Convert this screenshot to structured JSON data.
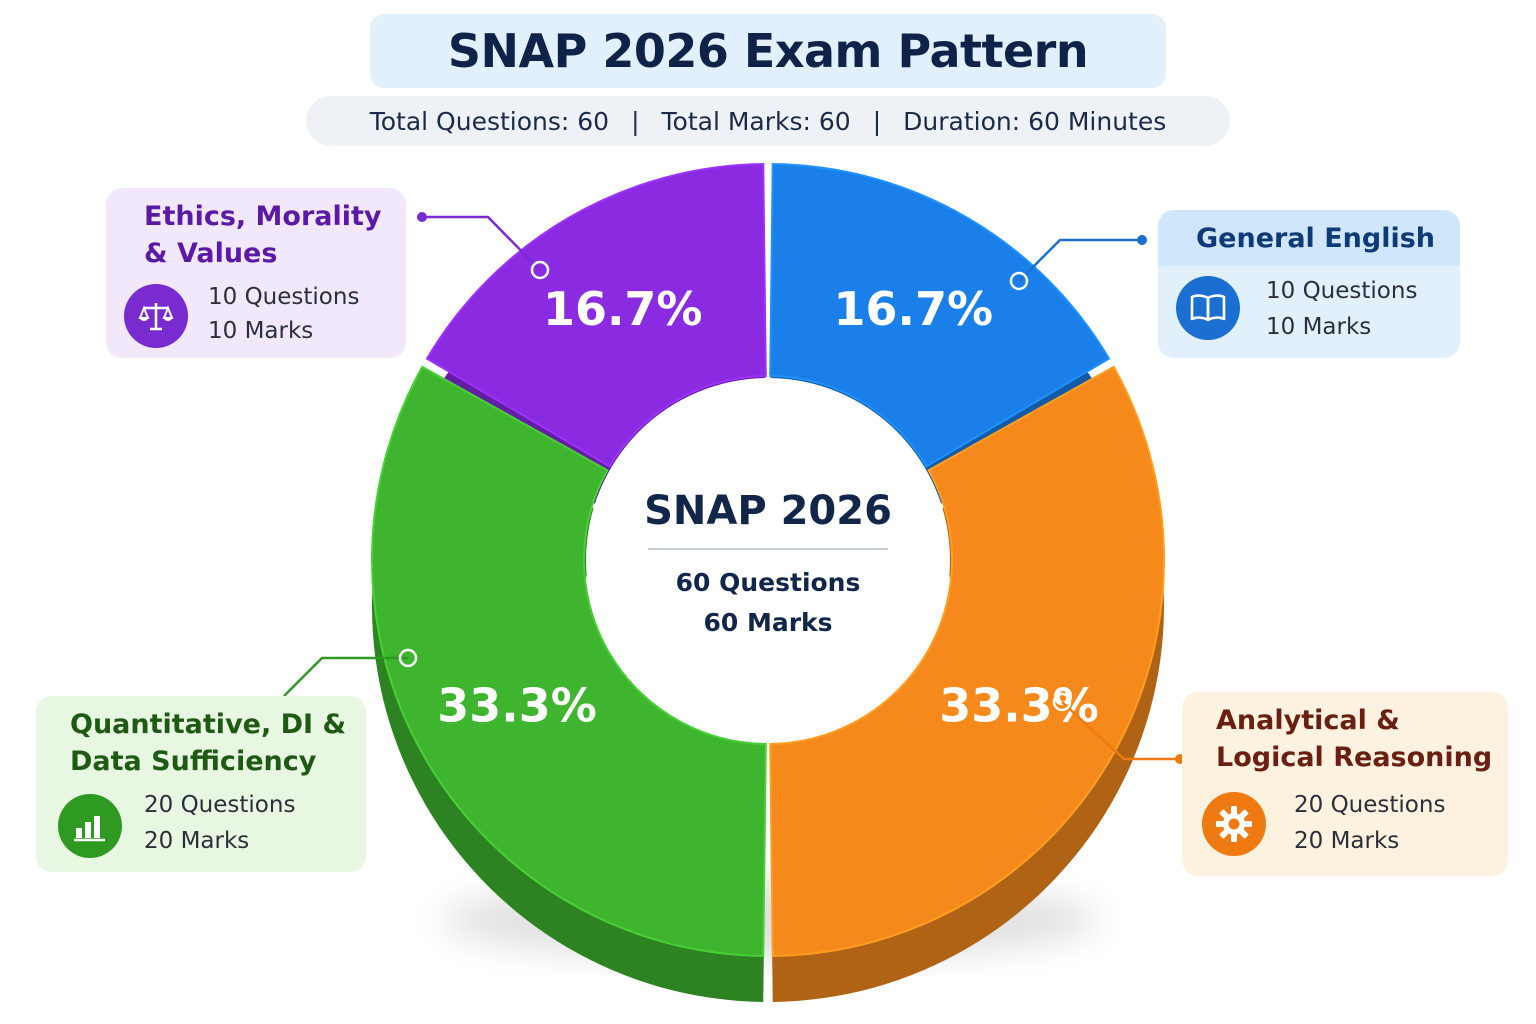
{
  "header": {
    "title": "SNAP 2026 Exam Pattern",
    "summary": {
      "questions": "Total Questions: 60",
      "marks": "Total Marks: 60",
      "duration": "Duration: 60 Minutes",
      "separator": "|"
    }
  },
  "center": {
    "title": "SNAP 2026",
    "questions": "60 Questions",
    "marks": "60 Marks"
  },
  "sections": {
    "ethics": {
      "label_line1": "Ethics, Morality",
      "label_line2": "& Values",
      "questions": "10 Questions",
      "marks": "10 Marks",
      "percent_label": "16.7%",
      "icon": "scales-icon",
      "color": "#8a2be2",
      "card_color": "#f1e8fb",
      "text_color": "#5b1aa6"
    },
    "english": {
      "label_line1": "General English",
      "questions": "10 Questions",
      "marks": "10 Marks",
      "percent_label": "16.7%",
      "icon": "book-icon",
      "color": "#1a7fe8",
      "card_color": "#e2f0fc",
      "text_color": "#0e3a78"
    },
    "analytical": {
      "label_line1": "Analytical &",
      "label_line2": "Logical Reasoning",
      "questions": "20 Questions",
      "marks": "20 Marks",
      "percent_label": "33.3%",
      "icon": "gear-icon",
      "color": "#f5891c",
      "card_color": "#fdf1df",
      "text_color": "#6b1f12"
    },
    "quant": {
      "label_line1": "Quantitative, DI &",
      "label_line2": "Data Sufficiency",
      "questions": "20 Questions",
      "marks": "20 Marks",
      "percent_label": "33.3%",
      "icon": "bar-chart-icon",
      "color": "#3fb52f",
      "card_color": "#e8f7e2",
      "text_color": "#1f5a14"
    }
  },
  "chart_data": {
    "type": "pie",
    "style": "3d-donut",
    "categories": [
      "General English",
      "Analytical & Logical Reasoning",
      "Quantitative, DI & Data Sufficiency",
      "Ethics, Morality & Values"
    ],
    "values": [
      16.7,
      33.3,
      33.3,
      16.7
    ],
    "value_labels": [
      "16.7%",
      "33.3%",
      "33.3%",
      "16.7%"
    ],
    "questions": [
      10,
      20,
      20,
      10
    ],
    "marks": [
      10,
      20,
      20,
      10
    ],
    "colors": [
      "#1a7fe8",
      "#f5891c",
      "#3fb52f",
      "#8a2be2"
    ],
    "title": "SNAP 2026 Exam Pattern"
  }
}
